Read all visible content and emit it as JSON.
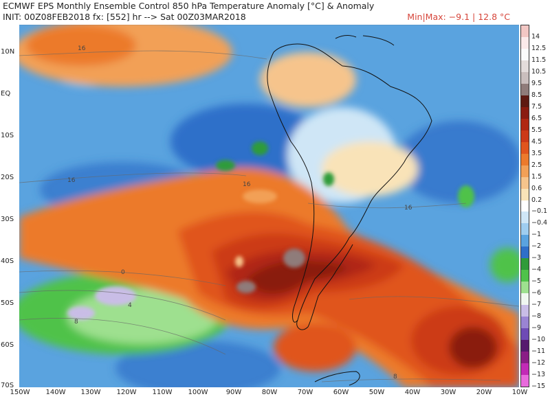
{
  "header": {
    "title": "ECMWF EPS Monthly Ensemble Control 850 hPa Temperature Anomaly [°C] & Anomaly",
    "init": "INIT: 00Z08FEB2018 fx: [552] hr --> Sat 00Z03MAR2018",
    "minmax": "Min|Max: −9.1 | 12.8 °C"
  },
  "map": {
    "lat_labels": [
      "10N",
      "EQ",
      "10S",
      "20S",
      "30S",
      "40S",
      "50S",
      "60S",
      "70S"
    ],
    "lon_labels": [
      "150W",
      "140W",
      "130W",
      "120W",
      "110W",
      "100W",
      "90W",
      "80W",
      "70W",
      "60W",
      "50W",
      "40W",
      "30W",
      "20W",
      "10W"
    ],
    "contour_labels": [
      "16",
      "16",
      "16",
      "16",
      "0",
      "4",
      "8",
      "8"
    ]
  },
  "colorbar": {
    "levels": [
      {
        "label": "14",
        "color": "#f2c7c4"
      },
      {
        "label": "12.5",
        "color": "#fbeaea"
      },
      {
        "label": "11.5",
        "color": "#fbfbfb"
      },
      {
        "label": "10.5",
        "color": "#e3dcdb"
      },
      {
        "label": "9.5",
        "color": "#c9bebd"
      },
      {
        "label": "8.5",
        "color": "#8f7c7a"
      },
      {
        "label": "7.5",
        "color": "#5e1a12"
      },
      {
        "label": "6.5",
        "color": "#8a1c10"
      },
      {
        "label": "5.5",
        "color": "#b02812"
      },
      {
        "label": "4.5",
        "color": "#cc3a18"
      },
      {
        "label": "3.5",
        "color": "#e0551d"
      },
      {
        "label": "2.5",
        "color": "#ec7a2c"
      },
      {
        "label": "1.5",
        "color": "#f2a057"
      },
      {
        "label": "0.6",
        "color": "#f6c48c"
      },
      {
        "label": "0.2",
        "color": "#f9e3b8"
      },
      {
        "label": "−0.1",
        "color": "#ffffff"
      },
      {
        "label": "−0.4",
        "color": "#cfe6f6"
      },
      {
        "label": "−1",
        "color": "#9fcdef"
      },
      {
        "label": "−2",
        "color": "#5aa3df"
      },
      {
        "label": "−3",
        "color": "#2f6fc9"
      },
      {
        "label": "−4",
        "color": "#2f9b3a"
      },
      {
        "label": "−5",
        "color": "#4fc24a"
      },
      {
        "label": "−6",
        "color": "#9ee08f"
      },
      {
        "label": "−7",
        "color": "#f0f7f0"
      },
      {
        "label": "−8",
        "color": "#c9bde6"
      },
      {
        "label": "−9",
        "color": "#9a84d3"
      },
      {
        "label": "−10",
        "color": "#6e4bb5"
      },
      {
        "label": "−11",
        "color": "#561a6e"
      },
      {
        "label": "−12",
        "color": "#8a1d86"
      },
      {
        "label": "−13",
        "color": "#c22ab6"
      },
      {
        "label": "−15",
        "color": "#e86adc"
      }
    ]
  }
}
